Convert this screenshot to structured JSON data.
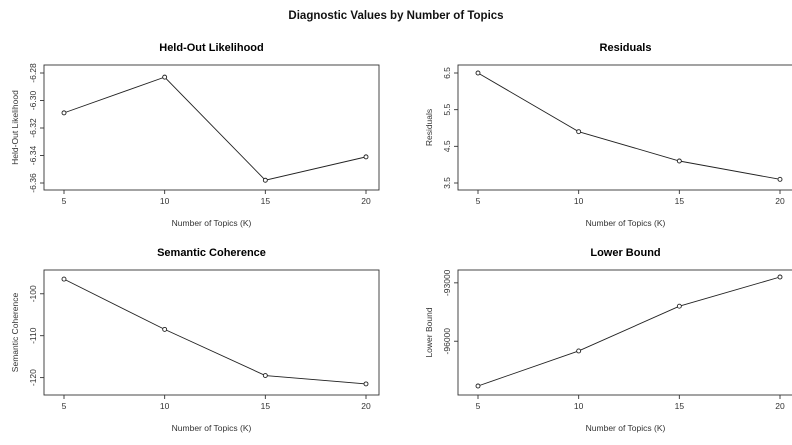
{
  "title": "Diagnostic Values by Number of Topics",
  "chart_data": [
    {
      "type": "line",
      "title": "Held-Out Likelihood",
      "xlabel": "Number of Topics (K)",
      "ylabel": "Held-Out Likelihood",
      "x": [
        5,
        10,
        15,
        20
      ],
      "y": [
        -6.309,
        -6.283,
        -6.358,
        -6.341
      ],
      "xticks": [
        "5",
        "10",
        "15",
        "20"
      ],
      "yticks": [
        -6.36,
        -6.34,
        -6.32,
        -6.3,
        -6.28
      ],
      "ytick_labels": [
        "-6.36",
        "-6.34",
        "-6.32",
        "-6.30",
        "-6.28"
      ],
      "ylim": [
        -6.36,
        -6.28
      ],
      "grid": false
    },
    {
      "type": "line",
      "title": "Residuals",
      "xlabel": "Number of Topics (K)",
      "ylabel": "Residuals",
      "x": [
        5,
        10,
        15,
        20
      ],
      "y": [
        6.5,
        4.9,
        4.1,
        3.6
      ],
      "xticks": [
        "5",
        "10",
        "15",
        "20"
      ],
      "yticks": [
        3.5,
        4.5,
        5.5,
        6.5
      ],
      "ytick_labels": [
        "3.5",
        "4.5",
        "5.5",
        "6.5"
      ],
      "ylim": [
        3.5,
        6.5
      ],
      "grid": false
    },
    {
      "type": "line",
      "title": "Semantic Coherence",
      "xlabel": "Number of Topics (K)",
      "ylabel": "Semantic Coherence",
      "x": [
        5,
        10,
        15,
        20
      ],
      "y": [
        -96.5,
        -108.5,
        -119.5,
        -121.5
      ],
      "xticks": [
        "5",
        "10",
        "15",
        "20"
      ],
      "yticks": [
        -120,
        -110,
        -100
      ],
      "ytick_labels": [
        "-120",
        "-110",
        "-100"
      ],
      "ylim": [
        -122,
        -96
      ],
      "grid": false
    },
    {
      "type": "line",
      "title": "Lower Bound",
      "xlabel": "Number of Topics (K)",
      "ylabel": "Lower Bound",
      "x": [
        5,
        10,
        15,
        20
      ],
      "y": [
        -98300,
        -96500,
        -94200,
        -92700
      ],
      "xticks": [
        "5",
        "10",
        "15",
        "20"
      ],
      "yticks": [
        -96000,
        -93000
      ],
      "ytick_labels": [
        "-96000",
        "-93000"
      ],
      "ylim": [
        -98300,
        -92700
      ],
      "grid": false
    }
  ]
}
